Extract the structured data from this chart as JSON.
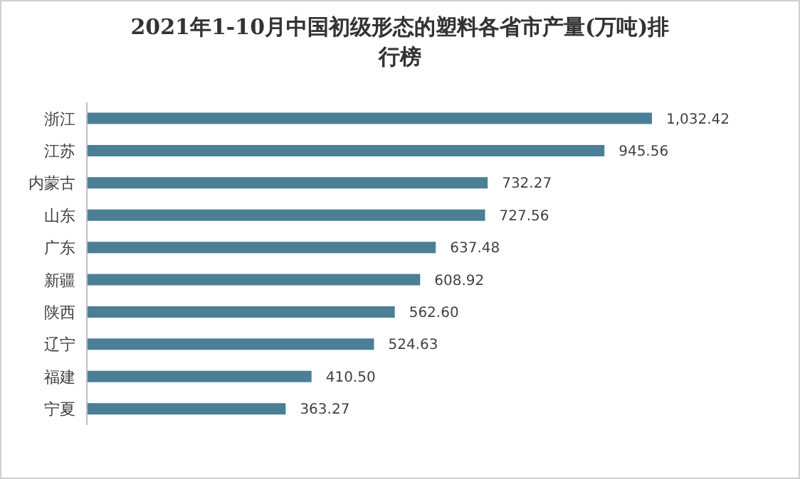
{
  "chart_data": {
    "type": "bar",
    "orientation": "horizontal",
    "title": "2021年1-10月中国初级形态的塑料各省市产量(万吨)排行榜",
    "categories": [
      "浙江",
      "江苏",
      "内蒙古",
      "山东",
      "广东",
      "新疆",
      "陕西",
      "辽宁",
      "福建",
      "宁夏"
    ],
    "values": [
      1032.42,
      945.56,
      732.27,
      727.56,
      637.48,
      608.92,
      562.6,
      524.63,
      410.5,
      363.27
    ],
    "value_labels": [
      "1,032.42",
      "945.56",
      "732.27",
      "727.56",
      "637.48",
      "608.92",
      "562.60",
      "524.63",
      "410.50",
      "363.27"
    ],
    "color": "#4a7f96"
  }
}
